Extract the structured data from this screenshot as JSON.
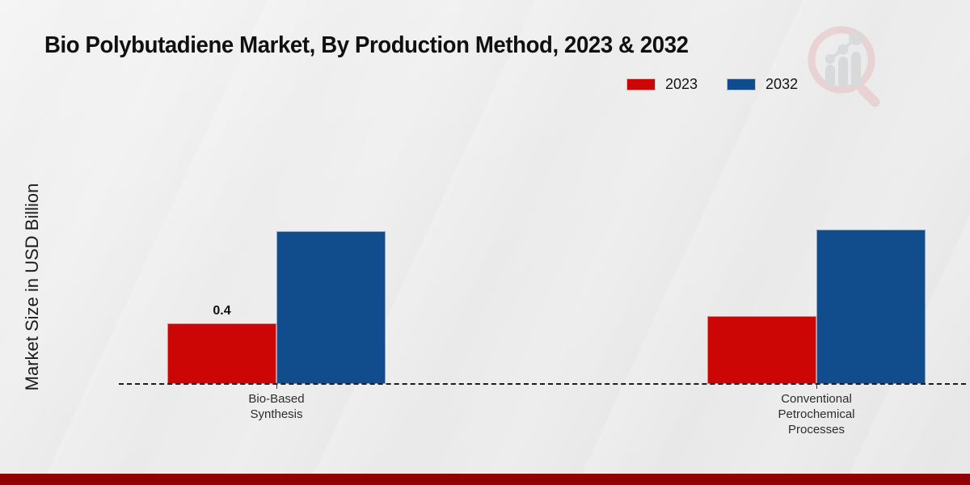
{
  "page": {
    "title": "Bio Polybutadiene Market, By Production Method, 2023 & 2032"
  },
  "axes": {
    "ylabel": "Market Size in USD Billion"
  },
  "legend": {
    "items": [
      {
        "label": "2023",
        "color": "#cc0605"
      },
      {
        "label": "2032",
        "color": "#114c8c"
      }
    ]
  },
  "watermark": {
    "name": "market-research-magnifier-logo"
  },
  "footer": {
    "accent_color": "#b20404"
  },
  "chart_data": {
    "type": "bar",
    "title": "Bio Polybutadiene Market, By Production Method, 2023 & 2032",
    "xlabel": "",
    "ylabel": "Market Size in USD Billion",
    "categories": [
      "Bio-Based\nSynthesis",
      "Conventional\nPetrochemical\nProcesses"
    ],
    "series": [
      {
        "name": "2023",
        "color": "#cc0605",
        "values": [
          0.4,
          0.45
        ],
        "data_labels": [
          "0.4",
          ""
        ]
      },
      {
        "name": "2032",
        "color": "#114c8c",
        "values": [
          1.01,
          1.02
        ],
        "data_labels": [
          "",
          ""
        ]
      }
    ],
    "ylim": [
      0,
      null
    ],
    "y_ticks_visible": false,
    "grid": false,
    "legend_position": "top-right",
    "baseline_style": "dashed"
  }
}
